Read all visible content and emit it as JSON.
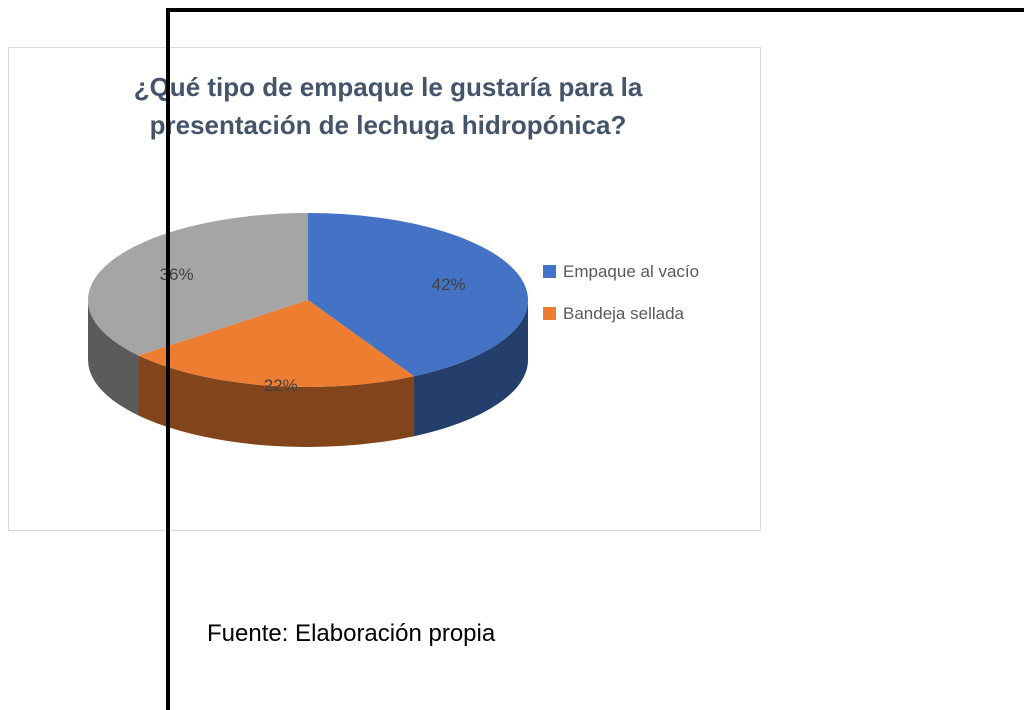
{
  "chart_data": {
    "type": "pie",
    "title": "¿Qué tipo de empaque le gustaría para la presentación de lechuga hidropónica?",
    "categories": [
      "Empaque al vacío",
      "Bandeja sellada",
      null
    ],
    "values": [
      42,
      22,
      36
    ],
    "value_labels": [
      "42%",
      "22%",
      "36%"
    ],
    "colors": [
      "#4472c4",
      "#ed7d31",
      "#a5a5a5"
    ],
    "legend": "right"
  },
  "caption": "Fuente: Elaboración propia"
}
